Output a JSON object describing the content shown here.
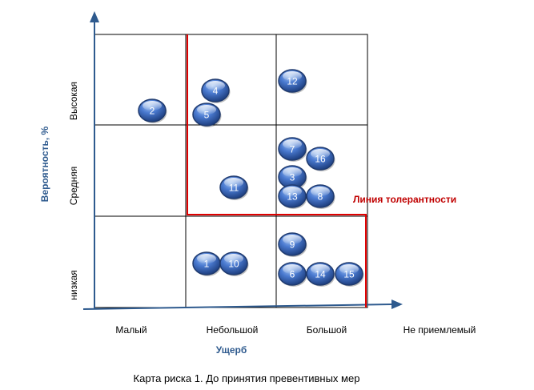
{
  "caption": "Карта риска 1. До принятия превентивных мер",
  "x_axis": {
    "title": "Ущерб",
    "categories": [
      "Малый",
      "Небольшой",
      "Большой",
      "Не приемлемый"
    ]
  },
  "y_axis": {
    "title": "Вероятность, %",
    "categories": [
      "низкая",
      "Средняя",
      "Высокая"
    ]
  },
  "tolerance_label": "Линия толерантности",
  "colors": {
    "axis": "#2e5a8e",
    "grid": "#000000",
    "tolerance": "#e00000",
    "risk_fill": "#3c6cc4",
    "risk_stroke": "#1f3a6e",
    "axis_title": "#2e5a8e"
  },
  "risks": [
    {
      "id": "1",
      "damage": "Небольшой",
      "probability": "низкая"
    },
    {
      "id": "2",
      "damage": "Малый",
      "probability": "Высокая"
    },
    {
      "id": "3",
      "damage": "Большой",
      "probability": "Средняя"
    },
    {
      "id": "4",
      "damage": "Небольшой",
      "probability": "Высокая"
    },
    {
      "id": "5",
      "damage": "Небольшой",
      "probability": "Высокая"
    },
    {
      "id": "6",
      "damage": "Большой",
      "probability": "низкая"
    },
    {
      "id": "7",
      "damage": "Большой",
      "probability": "Средняя"
    },
    {
      "id": "8",
      "damage": "Большой",
      "probability": "Средняя"
    },
    {
      "id": "9",
      "damage": "Большой",
      "probability": "низкая"
    },
    {
      "id": "10",
      "damage": "Небольшой",
      "probability": "низкая"
    },
    {
      "id": "11",
      "damage": "Небольшой",
      "probability": "Средняя"
    },
    {
      "id": "12",
      "damage": "Большой",
      "probability": "Высокая"
    },
    {
      "id": "13",
      "damage": "Большой",
      "probability": "Средняя"
    },
    {
      "id": "14",
      "damage": "Большой",
      "probability": "низкая"
    },
    {
      "id": "15",
      "damage": "Не приемлемый",
      "probability": "низкая"
    },
    {
      "id": "16",
      "damage": "Большой",
      "probability": "Средняя"
    }
  ]
}
